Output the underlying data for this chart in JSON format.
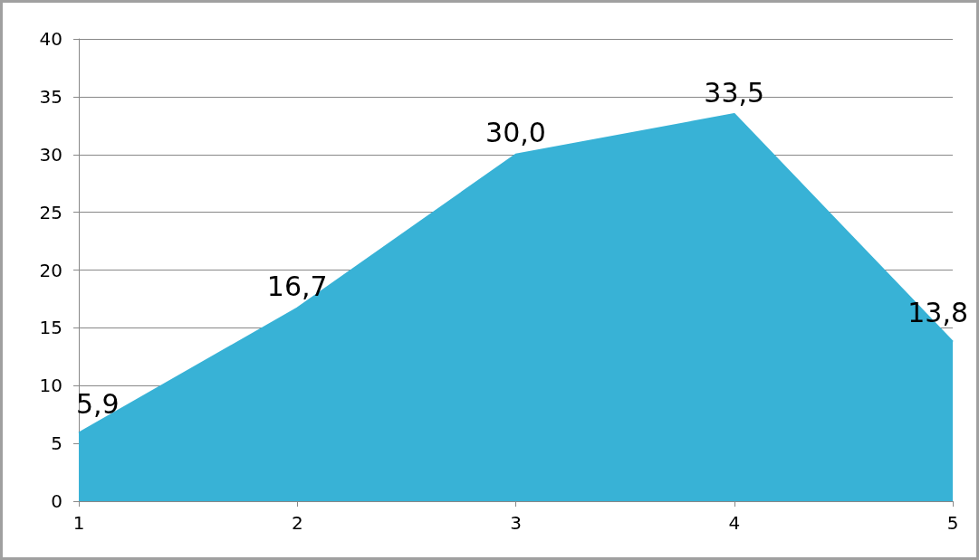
{
  "chart_data": {
    "type": "area",
    "categories": [
      "1",
      "2",
      "3",
      "4",
      "5"
    ],
    "values": [
      5.9,
      16.7,
      30.0,
      33.5,
      13.8
    ],
    "value_labels": [
      "5,9",
      "16,7",
      "30,0",
      "33,5",
      "13,8"
    ],
    "color": "#38b2d6",
    "ylim": [
      0,
      40
    ],
    "yticks": [
      0,
      5,
      10,
      15,
      20,
      25,
      30,
      35,
      40
    ],
    "grid": "y",
    "marker": "none"
  }
}
